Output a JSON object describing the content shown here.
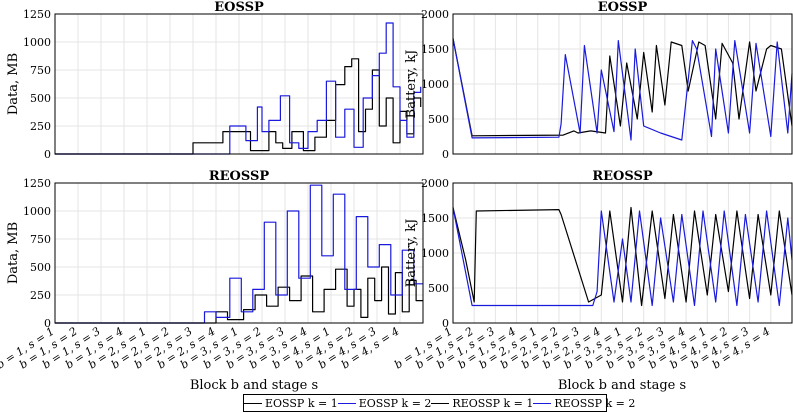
{
  "colors": {
    "k1": "#000000",
    "k2": "#1a1adc"
  },
  "legend": [
    {
      "label": "EOSSP k = 1",
      "color": "#000000"
    },
    {
      "label": "EOSSP k = 2",
      "color": "#1a1adc"
    },
    {
      "label": "REOSSP k = 1",
      "color": "#000000"
    },
    {
      "label": "REOSSP k = 2",
      "color": "#1a1adc"
    }
  ],
  "x_axis": {
    "label": "Block b and stage s",
    "tick_labels": [
      "b = 1, s = 1",
      "b = 1, s = 2",
      "b = 1, s = 3",
      "b = 1, s = 4",
      "b = 2, s = 1",
      "b = 2, s = 2",
      "b = 2, s = 3",
      "b = 2, s = 4",
      "b = 3, s = 1",
      "b = 3, s = 2",
      "b = 3, s = 3",
      "b = 3, s = 4",
      "b = 4, s = 1",
      "b = 4, s = 2",
      "b = 4, s = 3",
      "b = 4, s = 4"
    ]
  },
  "chart_data": [
    {
      "type": "line",
      "title": "EOSSP",
      "ylabel": "Data, MB",
      "ylim": [
        0,
        1250
      ],
      "yticks": [
        0,
        250,
        500,
        750,
        1000,
        1250
      ],
      "grid": true,
      "series": [
        {
          "name": "EOSSP k = 1",
          "color": "#000000",
          "x": [
            0,
            6.0,
            6.0,
            7.3,
            7.3,
            8.5,
            8.5,
            9.3,
            9.3,
            9.6,
            9.6,
            9.9,
            9.9,
            10.3,
            10.3,
            10.8,
            10.8,
            11.3,
            11.3,
            11.8,
            11.8,
            12.2,
            12.2,
            12.6,
            12.6,
            12.9,
            12.9,
            13.2,
            13.2,
            13.5,
            13.5,
            13.8,
            13.8,
            14.1,
            14.1,
            14.4,
            14.4,
            14.7,
            14.7,
            15.0,
            15.0,
            15.3,
            15.3,
            15.6,
            15.6,
            15.9,
            15.9
          ],
          "y": [
            0,
            0,
            100,
            100,
            200,
            200,
            30,
            30,
            200,
            200,
            100,
            100,
            50,
            50,
            200,
            200,
            30,
            30,
            150,
            150,
            300,
            300,
            620,
            620,
            780,
            780,
            850,
            850,
            200,
            200,
            400,
            400,
            750,
            750,
            250,
            250,
            500,
            500,
            100,
            100,
            380,
            380,
            180,
            180,
            500,
            500,
            420
          ]
        },
        {
          "name": "EOSSP k = 2",
          "color": "#1a1adc",
          "x": [
            0,
            7.6,
            7.6,
            8.3,
            8.3,
            8.8,
            8.8,
            9.0,
            9.0,
            9.3,
            9.3,
            9.8,
            9.8,
            10.2,
            10.2,
            10.6,
            10.6,
            11.0,
            11.0,
            11.4,
            11.4,
            11.8,
            11.8,
            12.2,
            12.2,
            12.6,
            12.6,
            13.0,
            13.0,
            13.4,
            13.4,
            13.8,
            13.8,
            14.1,
            14.1,
            14.4,
            14.4,
            14.7,
            14.7,
            15.0,
            15.0,
            15.3,
            15.3,
            15.6,
            15.6,
            15.9,
            15.9
          ],
          "y": [
            0,
            0,
            250,
            250,
            120,
            120,
            420,
            420,
            200,
            200,
            300,
            300,
            520,
            520,
            100,
            100,
            50,
            50,
            200,
            200,
            300,
            300,
            650,
            650,
            150,
            150,
            400,
            400,
            60,
            60,
            500,
            500,
            700,
            700,
            900,
            900,
            1170,
            1170,
            600,
            600,
            300,
            300,
            150,
            150,
            550,
            550,
            600
          ]
        }
      ]
    },
    {
      "type": "line",
      "title": "EOSSP",
      "ylabel": "Battery, kJ",
      "ylim": [
        0,
        2000
      ],
      "yticks": [
        0,
        500,
        1000,
        1500,
        2000
      ],
      "grid": true,
      "series": [
        {
          "name": "EOSSP k = 1",
          "color": "#000000",
          "x": [
            0,
            0.9,
            5.2,
            5.7,
            5.9,
            6.5,
            7.2,
            7.4,
            7.9,
            8.2,
            8.7,
            9.0,
            9.4,
            9.6,
            10.0,
            10.3,
            10.8,
            11.1,
            11.6,
            11.9,
            12.4,
            12.7,
            13.2,
            13.5,
            14.0,
            14.3,
            14.8,
            15.0,
            15.5,
            16.0
          ],
          "y": [
            1650,
            260,
            270,
            330,
            300,
            330,
            300,
            1400,
            400,
            1300,
            500,
            1450,
            600,
            1550,
            700,
            1600,
            1550,
            900,
            1600,
            1550,
            500,
            1580,
            1300,
            500,
            1600,
            900,
            1500,
            1550,
            1500,
            400
          ]
        },
        {
          "name": "EOSSP k = 2",
          "color": "#1a1adc",
          "x": [
            0,
            0.9,
            5.0,
            5.1,
            5.3,
            6.0,
            6.2,
            6.8,
            7.0,
            7.6,
            7.8,
            8.4,
            8.6,
            9.0,
            9.8,
            10.3,
            10.8,
            11.3,
            11.5,
            12.2,
            12.4,
            13.0,
            13.3,
            14.0,
            14.3,
            15.0,
            15.3,
            15.8,
            16.0
          ],
          "y": [
            1650,
            230,
            240,
            430,
            1420,
            300,
            1550,
            300,
            1200,
            320,
            1620,
            200,
            1500,
            400,
            300,
            250,
            200,
            1620,
            1500,
            250,
            1500,
            300,
            1620,
            300,
            1580,
            250,
            1600,
            300,
            1150
          ]
        }
      ]
    },
    {
      "type": "line",
      "title": "REOSSP",
      "ylabel": "Data, MB",
      "ylim": [
        0,
        1250
      ],
      "yticks": [
        0,
        250,
        500,
        750,
        1000,
        1250
      ],
      "grid": true,
      "series": [
        {
          "name": "REOSSP k = 1",
          "color": "#000000",
          "x": [
            0,
            7.0,
            7.0,
            7.5,
            7.5,
            8.2,
            8.2,
            8.7,
            8.7,
            9.2,
            9.2,
            9.7,
            9.7,
            10.2,
            10.2,
            10.7,
            10.7,
            11.2,
            11.2,
            11.7,
            11.7,
            12.2,
            12.2,
            12.7,
            12.7,
            13.0,
            13.0,
            13.3,
            13.3,
            13.6,
            13.6,
            13.9,
            13.9,
            14.2,
            14.2,
            14.5,
            14.5,
            14.8,
            14.8,
            15.1,
            15.1,
            15.4,
            15.4,
            15.7,
            15.7,
            16.0
          ],
          "y": [
            0,
            0,
            100,
            100,
            30,
            30,
            120,
            120,
            250,
            250,
            150,
            150,
            320,
            320,
            200,
            200,
            420,
            420,
            100,
            100,
            300,
            300,
            480,
            480,
            150,
            150,
            300,
            300,
            50,
            50,
            400,
            400,
            200,
            200,
            500,
            500,
            80,
            80,
            450,
            450,
            100,
            100,
            380,
            380,
            200,
            200
          ]
        },
        {
          "name": "REOSSP k = 2",
          "color": "#1a1adc",
          "x": [
            0,
            6.5,
            6.5,
            7.0,
            7.0,
            7.6,
            7.6,
            8.1,
            8.1,
            8.6,
            8.6,
            9.1,
            9.1,
            9.6,
            9.6,
            10.1,
            10.1,
            10.6,
            10.6,
            11.1,
            11.1,
            11.6,
            11.6,
            12.1,
            12.1,
            12.6,
            12.6,
            13.1,
            13.1,
            13.6,
            13.6,
            14.1,
            14.1,
            14.6,
            14.6,
            15.1,
            15.1,
            15.6,
            15.6,
            16.0
          ],
          "y": [
            0,
            0,
            100,
            100,
            50,
            50,
            400,
            400,
            100,
            100,
            300,
            300,
            900,
            900,
            250,
            250,
            1000,
            1000,
            400,
            400,
            1230,
            1230,
            600,
            600,
            1150,
            1150,
            300,
            300,
            950,
            950,
            500,
            500,
            700,
            700,
            250,
            250,
            650,
            650,
            350,
            350
          ]
        }
      ]
    },
    {
      "type": "line",
      "title": "REOSSP",
      "ylabel": "Battery, kJ",
      "ylim": [
        0,
        2000
      ],
      "yticks": [
        0,
        500,
        1000,
        1500,
        2000
      ],
      "grid": true,
      "series": [
        {
          "name": "REOSSP k = 1",
          "color": "#000000",
          "x": [
            0,
            0.6,
            1.0,
            1.1,
            5.0,
            5.1,
            6.4,
            7.0,
            7.4,
            8.0,
            8.4,
            8.9,
            9.4,
            10.0,
            10.4,
            11.0,
            11.4,
            12.0,
            12.4,
            13.0,
            13.4,
            14.0,
            14.4,
            15.0,
            15.4,
            16.0
          ],
          "y": [
            1650,
            900,
            300,
            1600,
            1620,
            1550,
            300,
            400,
            1600,
            300,
            1650,
            250,
            1600,
            350,
            1550,
            300,
            1600,
            400,
            1550,
            450,
            1600,
            350,
            1550,
            400,
            1600,
            400
          ]
        },
        {
          "name": "REOSSP k = 2",
          "color": "#1a1adc",
          "x": [
            0,
            0.9,
            6.6,
            6.8,
            7.0,
            7.6,
            8.0,
            8.4,
            8.8,
            9.4,
            9.8,
            10.4,
            10.8,
            11.4,
            11.8,
            12.4,
            12.8,
            13.4,
            13.8,
            14.4,
            14.8,
            15.4,
            15.8,
            16.0
          ],
          "y": [
            1650,
            250,
            250,
            450,
            1600,
            300,
            1200,
            300,
            1600,
            250,
            1500,
            300,
            1550,
            250,
            1600,
            300,
            1600,
            250,
            1550,
            300,
            1600,
            250,
            1500,
            900
          ]
        }
      ]
    }
  ]
}
